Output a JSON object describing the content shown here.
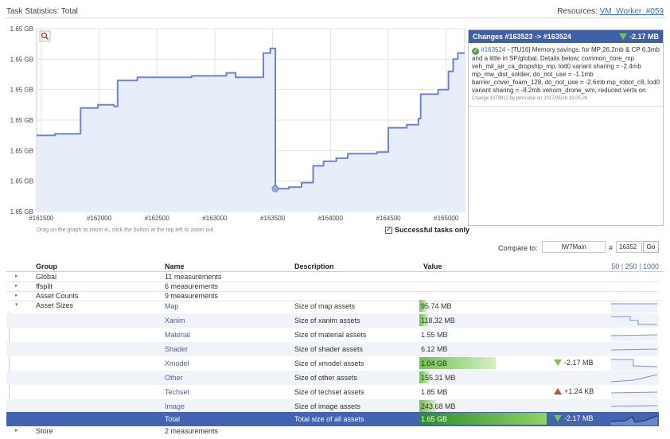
{
  "header": {
    "title": "Task Statistics: Total",
    "resources_label": "Resources:",
    "resources_link": "VM_Worker_#059"
  },
  "chart_data": {
    "type": "area",
    "title": "",
    "xlabel": "",
    "ylabel": "",
    "y_tick_labels": [
      "1.65 GB",
      "1.65 GB",
      "1.65 GB",
      "1.65 GB",
      "1.65 GB",
      "1.65 GB",
      "1.65 GB"
    ],
    "x_tick_labels": [
      "#161500",
      "#162000",
      "#162500",
      "#163000",
      "#163500",
      "#164000",
      "#164500",
      "#165000"
    ],
    "x_ticks": [
      161500,
      162000,
      162500,
      163000,
      163500,
      164000,
      164500,
      165000
    ],
    "xlim": [
      161460,
      165160
    ],
    "ylim": [
      0,
      6
    ],
    "grid": true,
    "highlight_point": {
      "x": 163523,
      "y": 0.75
    },
    "series": [
      {
        "x": [
          161460,
          161620,
          161620,
          161840,
          161840,
          161990,
          161990,
          162130,
          162130,
          162160,
          162160,
          162330,
          162330,
          162800,
          162800,
          163100,
          163100,
          163180,
          163180,
          163420,
          163420,
          163480,
          163480,
          163523,
          163523,
          163640,
          163640,
          163750,
          163750,
          163850,
          163850,
          163940,
          163940,
          164050,
          164050,
          164150,
          164150,
          164400,
          164400,
          164500,
          164500,
          164660,
          164660,
          164760,
          164760,
          164780,
          164780,
          164930,
          164930,
          165020,
          165020,
          165060,
          165060,
          165100,
          165100,
          165160
        ],
        "y": [
          2.5,
          2.5,
          2.55,
          2.55,
          3.4,
          3.4,
          3.5,
          3.5,
          3.45,
          3.45,
          4.3,
          4.3,
          4.4,
          4.4,
          4.45,
          4.45,
          4.55,
          4.55,
          4.4,
          4.4,
          5.2,
          5.2,
          5.35,
          5.35,
          0.75,
          0.75,
          0.8,
          0.8,
          0.95,
          0.95,
          1.5,
          1.5,
          1.65,
          1.65,
          1.75,
          1.75,
          1.9,
          1.9,
          1.95,
          1.95,
          2.75,
          2.75,
          2.85,
          2.85,
          3.05,
          3.05,
          3.85,
          3.85,
          4.0,
          4.0,
          4.6,
          4.6,
          5.0,
          5.0,
          5.2,
          5.2
        ]
      }
    ],
    "hint": "Drag on the graph to zoom in, click the button at the top left to zoom out",
    "successful_label": "Successful tasks only",
    "successful_checked": true,
    "zoom_icon": "magnifier-icon"
  },
  "changes_panel": {
    "title": "Changes #163523 -> #163524",
    "delta": "-2.17 MB",
    "change_link": "#163524",
    "change_text": " - [TU16] Memory savings, for MP 26.2mb & CP 6.3mb and a little in SP/global. Details below; common_core_mp veh_mil_air_ca_dropship_mp, lod0 variant sharing = -2.4mb mp_mw_dist_soldier, do_not_use = -1.1mb barrier_cover_foam_128, do_not_use = -2.6mb mp_robot_c8, lod0 variant sharing = -8.2mb venom_drone_wm, reduced verts on",
    "change_meta": "Change 1379912 by pmccabe on 2017/06/28 19:05:26"
  },
  "compare": {
    "label": "Compare to:",
    "branch": "IW7Main",
    "hash": "#",
    "number": "16352",
    "go": "Go"
  },
  "table": {
    "headers": {
      "group": "Group",
      "name": "Name",
      "description": "Description",
      "value": "Value"
    },
    "pager": [
      "50",
      "250",
      "1000"
    ],
    "collapsed_groups": [
      {
        "name": "Global",
        "measurements": "11 measurements"
      },
      {
        "name": "ffsplit",
        "measurements": "6 measurements"
      },
      {
        "name": "Asset Counts",
        "measurements": "9 measurements"
      }
    ],
    "expanded_group": "Asset Sizes",
    "rows": [
      {
        "name": "Map",
        "desc": "Size of map assets",
        "value": "95.74 MB",
        "bar": 0.09,
        "delta": "",
        "delta_dir": ""
      },
      {
        "name": "Xanim",
        "desc": "Size of xanim assets",
        "value": "118.32 MB",
        "bar": 0.11,
        "delta": "",
        "delta_dir": ""
      },
      {
        "name": "Material",
        "desc": "Size of material assets",
        "value": "1.55 MB",
        "bar": 0.0,
        "delta": "",
        "delta_dir": ""
      },
      {
        "name": "Shader",
        "desc": "Size of shader assets",
        "value": "6.12 MB",
        "bar": 0.0,
        "delta": "",
        "delta_dir": ""
      },
      {
        "name": "Xmodel",
        "desc": "Size of xmodel assets",
        "value": "1.04 GB",
        "bar": 1.0,
        "delta": "-2.17 MB",
        "delta_dir": "down"
      },
      {
        "name": "Other",
        "desc": "Size of other assets",
        "value": "155.31 MB",
        "bar": 0.14,
        "delta": "",
        "delta_dir": ""
      },
      {
        "name": "Techset",
        "desc": "Size of techset assets",
        "value": "1.85 MB",
        "bar": 0.0,
        "delta": "+1.24 KB",
        "delta_dir": "up"
      },
      {
        "name": "Image",
        "desc": "Size of image assets",
        "value": "243.68 MB",
        "bar": 0.22,
        "delta": "",
        "delta_dir": ""
      }
    ],
    "total": {
      "name": "Total",
      "desc": "Total size of all assets",
      "value": "1.65 GB",
      "bar": 1.0,
      "delta": "-2.17 MB",
      "delta_dir": "down"
    },
    "store": {
      "name": "Store",
      "measurements": "2 measurements"
    }
  }
}
